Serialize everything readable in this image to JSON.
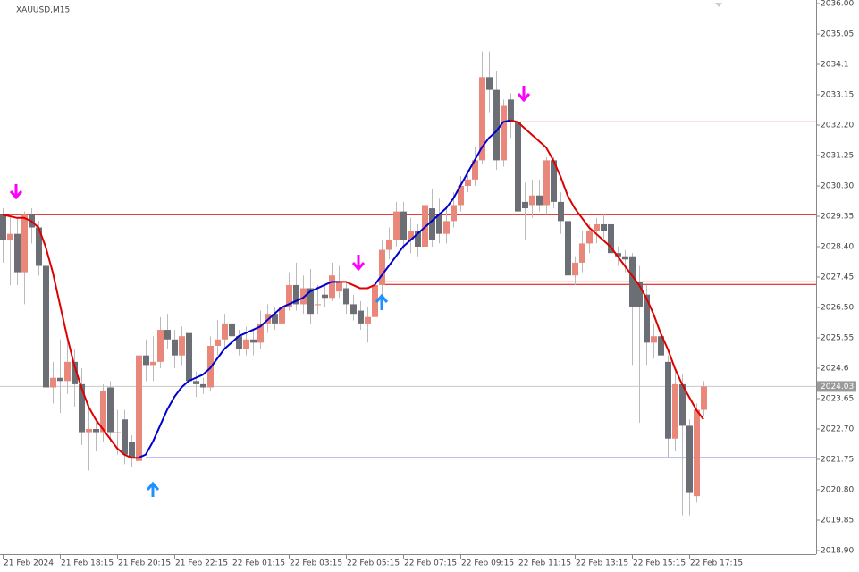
{
  "chart_data": {
    "type": "candlestick",
    "title": "XAUUSD,M15",
    "categories": [
      "21 Feb 2024",
      null,
      null,
      null,
      null,
      null,
      null,
      null,
      "21 Feb 18:15",
      null,
      null,
      null,
      null,
      null,
      null,
      null,
      "21 Feb 20:15",
      null,
      null,
      null,
      null,
      null,
      null,
      null,
      "21 Feb 22:15",
      null,
      null,
      null,
      null,
      null,
      null,
      null,
      "22 Feb 01:15",
      null,
      null,
      null,
      null,
      null,
      null,
      null,
      "22 Feb 03:15",
      null,
      null,
      null,
      null,
      null,
      null,
      null,
      "22 Feb 05:15",
      null,
      null,
      null,
      null,
      null,
      null,
      null,
      "22 Feb 07:15",
      null,
      null,
      null,
      null,
      null,
      null,
      null,
      "22 Feb 09:15",
      null,
      null,
      null,
      null,
      null,
      null,
      null,
      "22 Feb 11:15",
      null,
      null,
      null,
      null,
      null,
      null,
      null,
      "22 Feb 13:15",
      null,
      null,
      null,
      null,
      null,
      null,
      null,
      "22 Feb 15:15",
      null,
      null,
      null,
      null,
      null,
      null,
      null,
      "22 Feb 17:15",
      null,
      null
    ],
    "open": [
      2029.4,
      2028.6,
      2028.8,
      2027.6,
      2029.4,
      2029.0,
      2027.8,
      2024.0,
      2024.3,
      2024.2,
      2024.8,
      2024.1,
      2022.6,
      2022.7,
      2022.6,
      2024.0,
      2022.6,
      2023.0,
      2022.3,
      2021.7,
      2025.0,
      2024.7,
      2024.8,
      2025.8,
      2025.5,
      2025.0,
      2025.7,
      2024.2,
      2024.1,
      2024.0,
      2025.3,
      2025.5,
      2026.0,
      2025.6,
      2025.2,
      2025.5,
      2025.4,
      2026.0,
      2026.3,
      2026.0,
      2026.5,
      2027.2,
      2026.6,
      2027.1,
      2026.6,
      2026.9,
      2026.8,
      2027.0,
      2027.1,
      2026.6,
      2026.4,
      2026.0,
      2026.2,
      2027.2,
      2028.3,
      2028.6,
      2029.5,
      2028.6,
      2028.9,
      2028.4,
      2029.6,
      2029.4,
      2028.8,
      2029.2,
      2029.7,
      2030.3,
      2030.5,
      2031.1,
      2033.7,
      2033.3,
      2031.1,
      2033.0,
      2032.3,
      2029.8,
      2029.7,
      2030.0,
      2029.7,
      2031.1,
      2029.8,
      2029.2,
      2027.5,
      2027.9,
      2028.5,
      2028.9,
      2029.1,
      2029.1,
      2028.2,
      2028.1,
      2028.1,
      2027.3,
      2026.9,
      2025.4,
      2025.6,
      2024.8,
      2022.4,
      2024.1,
      2022.8,
      2020.6,
      2023.3
    ],
    "high": [
      2029.6,
      2029.4,
      2029.3,
      2029.5,
      2029.6,
      2029.2,
      2028.0,
      2024.8,
      2025.5,
      2025.5,
      2025.2,
      2024.6,
      2023.5,
      2023.0,
      2024.1,
      2024.2,
      2023.3,
      2023.3,
      2022.5,
      2025.4,
      2025.5,
      2025.6,
      2026.2,
      2026.3,
      2025.8,
      2025.9,
      2026.0,
      2024.5,
      2024.3,
      2025.6,
      2026.1,
      2026.3,
      2026.2,
      2025.8,
      2025.9,
      2025.8,
      2026.4,
      2026.6,
      2026.5,
      2026.8,
      2027.6,
      2027.9,
      2027.5,
      2027.7,
      2027.2,
      2027.2,
      2027.9,
      2027.8,
      2027.3,
      2026.9,
      2026.7,
      2026.5,
      2027.5,
      2028.6,
      2029.0,
      2029.8,
      2029.8,
      2029.3,
      2029.1,
      2030.0,
      2030.2,
      2029.9,
      2029.6,
      2030.1,
      2030.6,
      2030.8,
      2031.5,
      2034.5,
      2034.5,
      2033.9,
      2033.0,
      2033.2,
      2032.5,
      2030.4,
      2030.5,
      2030.5,
      2031.2,
      2031.2,
      2030.1,
      2029.4,
      2028.1,
      2028.9,
      2029.1,
      2029.3,
      2029.4,
      2029.2,
      2028.4,
      2028.3,
      2028.2,
      2027.8,
      2027.2,
      2026.0,
      2025.9,
      2025.0,
      2024.6,
      2024.4,
      2023.0,
      2023.5,
      2024.2
    ],
    "low": [
      2027.9,
      2027.2,
      2027.2,
      2026.6,
      2028.5,
      2027.5,
      2023.8,
      2023.5,
      2023.2,
      2023.8,
      2023.4,
      2022.2,
      2021.4,
      2022.0,
      2022.3,
      2022.3,
      2021.9,
      2021.6,
      2021.5,
      2019.9,
      2024.2,
      2024.2,
      2024.6,
      2025.2,
      2024.6,
      2024.7,
      2023.9,
      2023.7,
      2023.8,
      2023.9,
      2025.0,
      2025.2,
      2025.3,
      2025.0,
      2025.0,
      2025.0,
      2025.2,
      2025.7,
      2025.8,
      2025.9,
      2026.4,
      2026.4,
      2026.3,
      2026.0,
      2026.3,
      2026.5,
      2026.7,
      2026.8,
      2026.3,
      2026.1,
      2025.8,
      2025.4,
      2025.9,
      2026.9,
      2028.0,
      2028.4,
      2028.3,
      2028.2,
      2028.1,
      2028.2,
      2028.4,
      2028.5,
      2028.5,
      2029.0,
      2029.5,
      2030.1,
      2030.3,
      2031.0,
      2032.6,
      2030.8,
      2030.9,
      2031.8,
      2029.3,
      2028.6,
      2029.3,
      2029.5,
      2029.4,
      2029.6,
      2028.8,
      2027.2,
      2027.2,
      2027.6,
      2028.2,
      2028.5,
      2028.6,
      2027.9,
      2027.8,
      2027.6,
      2024.7,
      2022.9,
      2024.7,
      2024.9,
      2024.6,
      2021.8,
      2022.0,
      2020.0,
      2020.0,
      2020.4,
      2023.1
    ],
    "close": [
      2028.6,
      2028.8,
      2027.6,
      2029.4,
      2029.0,
      2027.8,
      2024.0,
      2024.3,
      2024.2,
      2024.8,
      2024.1,
      2022.6,
      2022.7,
      2022.6,
      2023.9,
      2022.6,
      2022.6,
      2021.9,
      2021.8,
      2025.0,
      2024.7,
      2024.8,
      2025.8,
      2025.5,
      2025.0,
      2025.6,
      2024.2,
      2024.1,
      2024.0,
      2025.3,
      2025.5,
      2026.0,
      2025.6,
      2025.2,
      2025.5,
      2025.4,
      2026.0,
      2026.3,
      2026.0,
      2026.5,
      2027.2,
      2026.6,
      2027.1,
      2026.3,
      2026.6,
      2026.8,
      2027.5,
      2027.3,
      2026.6,
      2026.3,
      2026.0,
      2026.2,
      2027.2,
      2028.3,
      2028.6,
      2029.5,
      2028.6,
      2028.9,
      2028.4,
      2029.7,
      2028.6,
      2028.8,
      2029.2,
      2029.7,
      2030.3,
      2030.5,
      2031.1,
      2033.7,
      2033.3,
      2031.1,
      2032.8,
      2032.3,
      2029.5,
      2029.6,
      2030.0,
      2029.7,
      2031.1,
      2029.8,
      2029.2,
      2027.5,
      2027.9,
      2028.5,
      2028.9,
      2029.1,
      2028.9,
      2028.2,
      2028.1,
      2028.0,
      2026.5,
      2026.5,
      2025.4,
      2025.6,
      2025.0,
      2022.4,
      2024.1,
      2022.8,
      2020.7,
      2023.3,
      2024.03
    ],
    "up_color": "#e8877a",
    "down_color": "#6b6f75",
    "overlays": [
      {
        "color": "#0000cc",
        "values": [
          null,
          null,
          null,
          null,
          null,
          null,
          null,
          null,
          null,
          null,
          null,
          null,
          null,
          null,
          null,
          null,
          null,
          null,
          null,
          2021.8,
          2021.9,
          2022.3,
          2022.8,
          2023.3,
          2023.7,
          2024.0,
          2024.2,
          2024.3,
          2024.4,
          2024.6,
          2024.9,
          2025.2,
          2025.4,
          2025.6,
          2025.7,
          2025.8,
          2025.9,
          2026.1,
          2026.3,
          2026.5,
          2026.6,
          2026.7,
          2026.8,
          2027.0,
          2027.1,
          2027.2,
          2027.3,
          2027.3,
          null,
          null,
          null,
          null,
          2027.2,
          2027.5,
          2027.8,
          2028.1,
          2028.4,
          2028.6,
          2028.8,
          2029.0,
          2029.2,
          2029.4,
          2029.6,
          2029.9,
          2030.3,
          2030.7,
          2031.1,
          2031.5,
          2031.8,
          2032.0,
          2032.3,
          2032.35,
          null,
          null,
          null,
          null,
          null,
          null,
          null,
          null,
          null,
          null,
          null,
          null,
          null,
          null,
          null,
          null,
          null,
          null,
          null,
          null,
          null,
          null,
          null,
          null,
          null,
          null,
          null
        ]
      },
      {
        "color": "#dd0000",
        "values": [
          2029.4,
          2029.35,
          2029.3,
          2029.3,
          2029.2,
          2029.0,
          2028.4,
          2027.6,
          2026.6,
          2025.6,
          2024.7,
          2024.0,
          2023.4,
          2023.0,
          2022.7,
          2022.4,
          2022.1,
          2021.9,
          2021.8,
          2021.8,
          null,
          null,
          null,
          null,
          null,
          null,
          null,
          null,
          null,
          null,
          null,
          null,
          null,
          null,
          null,
          null,
          null,
          null,
          null,
          null,
          null,
          null,
          null,
          null,
          null,
          null,
          null,
          2027.3,
          2027.3,
          2027.2,
          2027.1,
          2027.1,
          2027.2,
          null,
          null,
          null,
          null,
          null,
          null,
          null,
          null,
          null,
          null,
          null,
          null,
          null,
          null,
          null,
          null,
          null,
          null,
          2032.35,
          2032.3,
          2032.1,
          2031.9,
          2031.7,
          2031.5,
          2031.1,
          2030.6,
          2030.0,
          2029.6,
          2029.3,
          2029.0,
          2028.8,
          2028.6,
          2028.4,
          2028.1,
          2027.8,
          2027.5,
          2027.2,
          2026.8,
          2026.3,
          2025.7,
          2025.2,
          2024.6,
          2024.1,
          2023.7,
          2023.3,
          2023.0
        ]
      }
    ],
    "levels": [
      {
        "value": 2029.4,
        "color": "#dd0000"
      },
      {
        "value": 2032.3,
        "color": "#dd0000"
      },
      {
        "value": 2027.3,
        "color": "#dd0000"
      },
      {
        "value": 2027.22,
        "color": "#dd0000"
      },
      {
        "value": 2021.8,
        "color": "#0000cc"
      }
    ],
    "last_price": 2024.03,
    "ylim": [
      2018.9,
      2036.0
    ],
    "yticks": [
      {
        "value": 2036.0,
        "label": "2036.00"
      },
      2035.05,
      2034.1,
      2033.15,
      {
        "value": 2032.2,
        "label": "2032.20"
      },
      2031.25,
      {
        "value": 2030.3,
        "label": "2030.30"
      },
      2029.35,
      {
        "value": 2028.4,
        "label": "2028.40"
      },
      2027.45,
      {
        "value": 2026.5,
        "label": "2026.50"
      },
      2025.55,
      2024.6,
      2023.65,
      {
        "value": 2022.7,
        "label": "2022.70"
      },
      2021.75,
      {
        "value": 2020.8,
        "label": "2020.80"
      },
      2019.85,
      {
        "value": 2018.9,
        "label": "2018.90"
      }
    ]
  }
}
